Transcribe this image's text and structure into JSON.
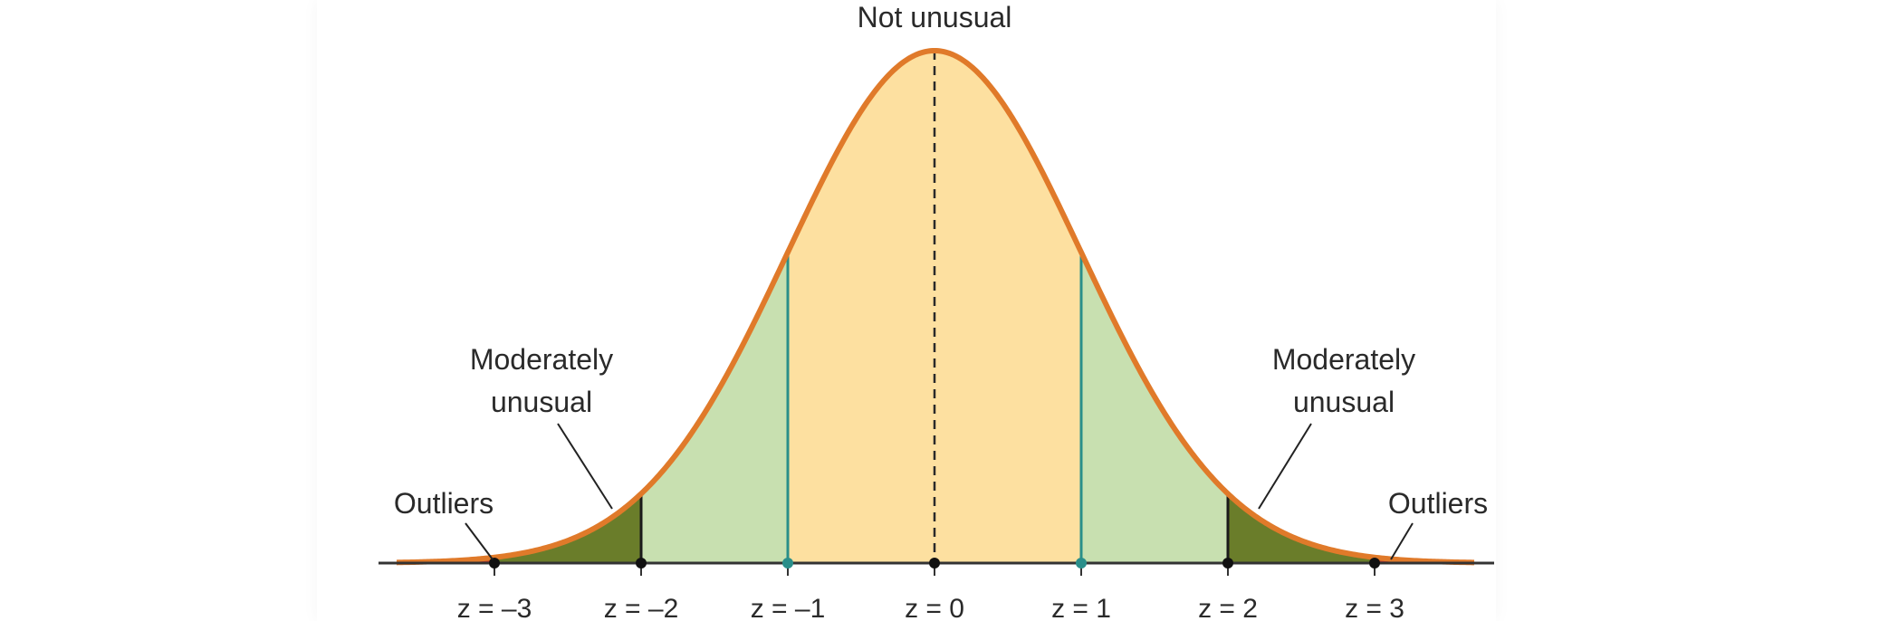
{
  "diagram": {
    "top_label": "Not unusual",
    "left_moderate": [
      "Moderately",
      "unusual"
    ],
    "right_moderate": [
      "Moderately",
      "unusual"
    ],
    "left_outliers": "Outliers",
    "right_outliers": "Outliers",
    "ticks": [
      "z = –3",
      "z = –2",
      "z = –1",
      "z = 0",
      "z = 1",
      "z = 2",
      "z = 3"
    ]
  },
  "colors": {
    "curve": "#e07a2a",
    "center": "#fde0a0",
    "inner_tails": "#c8e0b0",
    "moderate_tails": "#6a7d2a",
    "outlier_tails": "#c0392b",
    "axis": "#333333",
    "teal": "#2a8f8a"
  }
}
